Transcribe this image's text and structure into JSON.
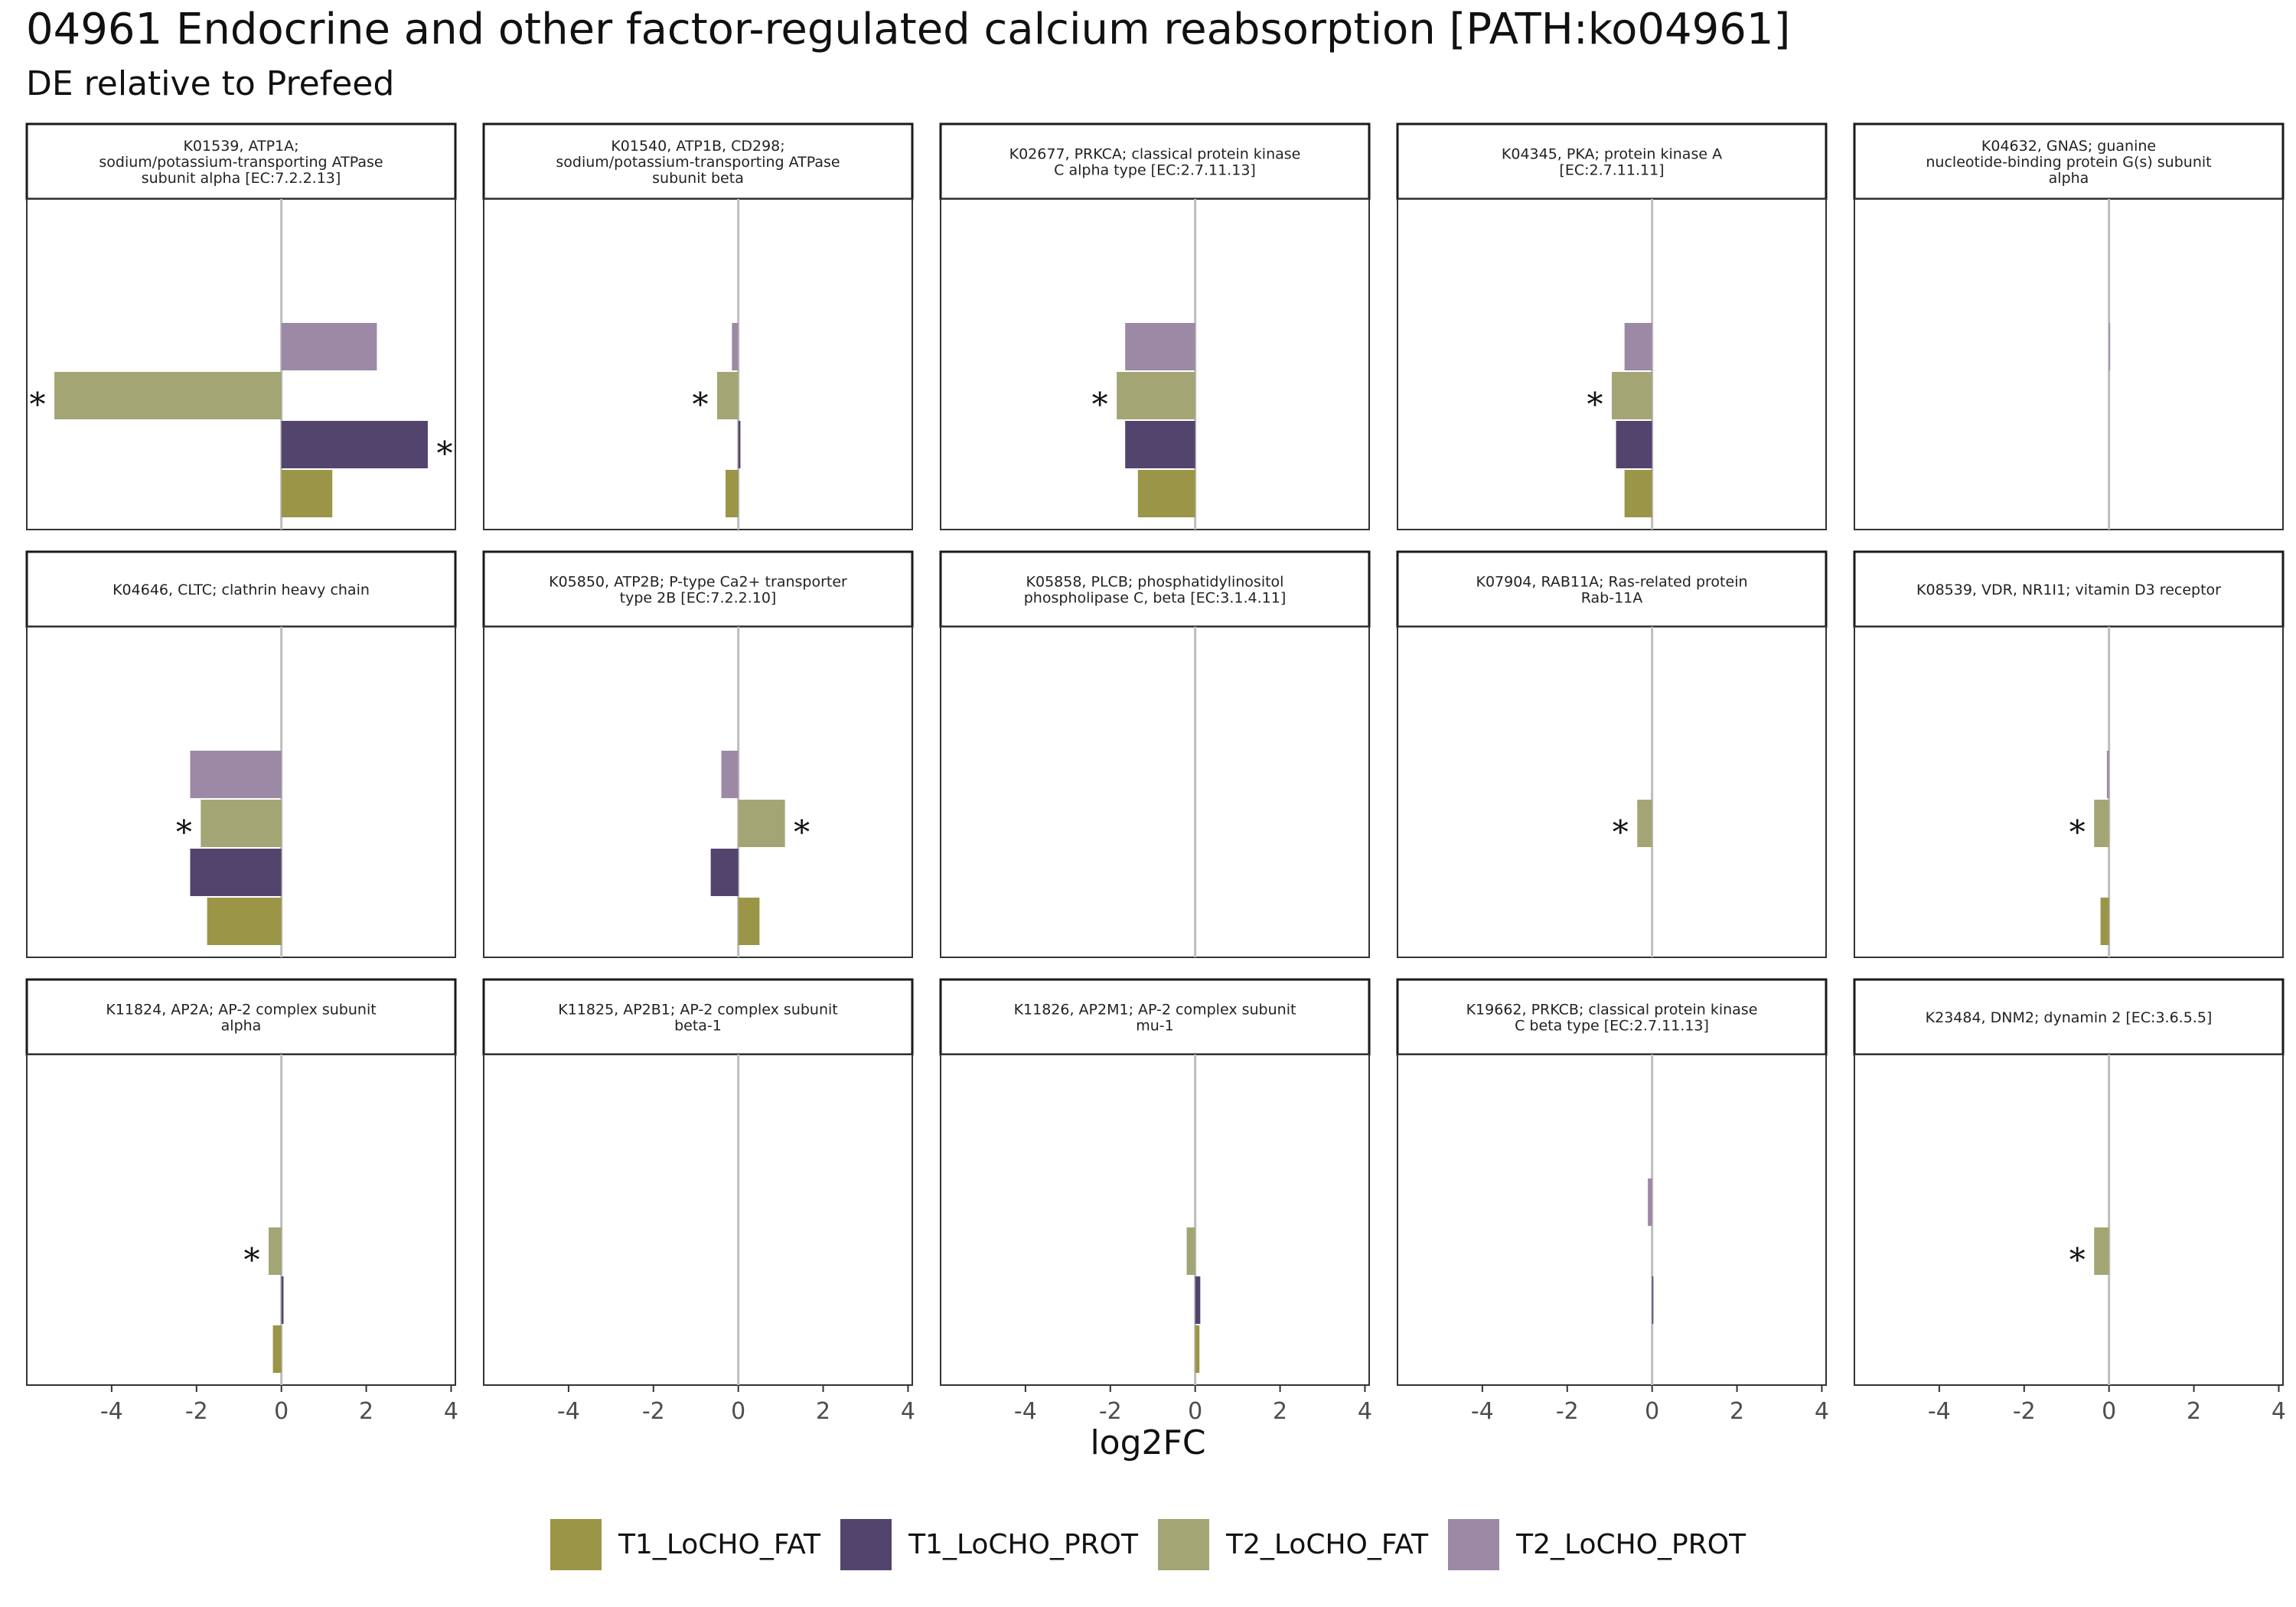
{
  "title": "04961 Endocrine and other factor-regulated calcium reabsorption [PATH:ko04961]",
  "subtitle": "DE relative to Prefeed",
  "chart_data": {
    "type": "bar",
    "orientation": "horizontal",
    "facet_layout": "3 rows x 5 columns",
    "xlabel": "log2FC",
    "ylabel": "",
    "xlim": [
      -6,
      4.1
    ],
    "xticks": [
      "-4",
      "-2",
      "0",
      "2",
      "4"
    ],
    "xtick_values": [
      -4,
      -2,
      0,
      2,
      4
    ],
    "grid": false,
    "legend_position": "bottom",
    "significance_marker": "*",
    "series": [
      {
        "name": "T1_LoCHO_FAT",
        "color": "#9b9547"
      },
      {
        "name": "T1_LoCHO_PROT",
        "color": "#53446d"
      },
      {
        "name": "T2_LoCHO_FAT",
        "color": "#a4a575"
      },
      {
        "name": "T2_LoCHO_PROT",
        "color": "#9c89a6"
      }
    ],
    "panels": [
      {
        "label": "K01539, ATP1A;\nsodium/potassium-transporting ATPase\nsubunit alpha [EC:7.2.2.13]",
        "values": {
          "T1_LoCHO_FAT": 1.2,
          "T1_LoCHO_PROT": 3.45,
          "T2_LoCHO_FAT": -5.35,
          "T2_LoCHO_PROT": 2.25
        },
        "significant": [
          "T1_LoCHO_PROT",
          "T2_LoCHO_FAT"
        ]
      },
      {
        "label": "K01540, ATP1B, CD298;\nsodium/potassium-transporting ATPase\nsubunit beta",
        "values": {
          "T1_LoCHO_FAT": -0.3,
          "T1_LoCHO_PROT": 0.05,
          "T2_LoCHO_FAT": -0.5,
          "T2_LoCHO_PROT": -0.15
        },
        "significant": [
          "T2_LoCHO_FAT"
        ]
      },
      {
        "label": "K02677, PRKCA; classical protein kinase\nC alpha type [EC:2.7.11.13]",
        "values": {
          "T1_LoCHO_FAT": -1.35,
          "T1_LoCHO_PROT": -1.65,
          "T2_LoCHO_FAT": -1.85,
          "T2_LoCHO_PROT": -1.65
        },
        "significant": [
          "T2_LoCHO_FAT"
        ]
      },
      {
        "label": "K04345, PKA; protein kinase A\n[EC:2.7.11.11]",
        "values": {
          "T1_LoCHO_FAT": -0.65,
          "T1_LoCHO_PROT": -0.85,
          "T2_LoCHO_FAT": -0.95,
          "T2_LoCHO_PROT": -0.65
        },
        "significant": [
          "T2_LoCHO_FAT"
        ]
      },
      {
        "label": "K04632, GNAS; guanine\nnucleotide-binding protein G(s) subunit\nalpha",
        "values": {
          "T1_LoCHO_FAT": 0,
          "T1_LoCHO_PROT": 0,
          "T2_LoCHO_FAT": 0,
          "T2_LoCHO_PROT": 0.02
        },
        "significant": []
      },
      {
        "label": "K04646, CLTC; clathrin heavy chain",
        "values": {
          "T1_LoCHO_FAT": -1.75,
          "T1_LoCHO_PROT": -2.15,
          "T2_LoCHO_FAT": -1.9,
          "T2_LoCHO_PROT": -2.15
        },
        "significant": [
          "T2_LoCHO_FAT"
        ]
      },
      {
        "label": "K05850, ATP2B; P-type Ca2+ transporter\ntype 2B [EC:7.2.2.10]",
        "values": {
          "T1_LoCHO_FAT": 0.5,
          "T1_LoCHO_PROT": -0.65,
          "T2_LoCHO_FAT": 1.1,
          "T2_LoCHO_PROT": -0.4
        },
        "significant": [
          "T2_LoCHO_FAT"
        ]
      },
      {
        "label": "K05858, PLCB; phosphatidylinositol\nphospholipase C, beta [EC:3.1.4.11]",
        "values": {
          "T1_LoCHO_FAT": 0,
          "T1_LoCHO_PROT": 0,
          "T2_LoCHO_FAT": 0,
          "T2_LoCHO_PROT": 0
        },
        "significant": []
      },
      {
        "label": "K07904, RAB11A; Ras-related protein\nRab-11A",
        "values": {
          "T1_LoCHO_FAT": 0,
          "T1_LoCHO_PROT": 0,
          "T2_LoCHO_FAT": -0.35,
          "T2_LoCHO_PROT": 0
        },
        "significant": [
          "T2_LoCHO_FAT"
        ]
      },
      {
        "label": "K08539, VDR, NR1I1; vitamin D3 receptor",
        "values": {
          "T1_LoCHO_FAT": -0.2,
          "T1_LoCHO_PROT": 0,
          "T2_LoCHO_FAT": -0.35,
          "T2_LoCHO_PROT": -0.05
        },
        "significant": [
          "T2_LoCHO_FAT"
        ]
      },
      {
        "label": "K11824, AP2A; AP-2 complex subunit\nalpha",
        "values": {
          "T1_LoCHO_FAT": -0.2,
          "T1_LoCHO_PROT": 0.05,
          "T2_LoCHO_FAT": -0.3,
          "T2_LoCHO_PROT": 0
        },
        "significant": [
          "T2_LoCHO_FAT"
        ]
      },
      {
        "label": "K11825, AP2B1; AP-2 complex subunit\nbeta-1",
        "values": {
          "T1_LoCHO_FAT": 0,
          "T1_LoCHO_PROT": 0,
          "T2_LoCHO_FAT": 0,
          "T2_LoCHO_PROT": 0
        },
        "significant": []
      },
      {
        "label": "K11826, AP2M1; AP-2 complex subunit\nmu-1",
        "values": {
          "T1_LoCHO_FAT": 0.1,
          "T1_LoCHO_PROT": 0.12,
          "T2_LoCHO_FAT": -0.2,
          "T2_LoCHO_PROT": 0
        },
        "significant": []
      },
      {
        "label": "K19662, PRKCB; classical protein kinase\nC beta type [EC:2.7.11.13]",
        "values": {
          "T1_LoCHO_FAT": 0,
          "T1_LoCHO_PROT": 0.03,
          "T2_LoCHO_FAT": 0,
          "T2_LoCHO_PROT": -0.1
        },
        "significant": []
      },
      {
        "label": "K23484, DNM2; dynamin 2 [EC:3.6.5.5]",
        "values": {
          "T1_LoCHO_FAT": 0,
          "T1_LoCHO_PROT": 0,
          "T2_LoCHO_FAT": -0.35,
          "T2_LoCHO_PROT": 0
        },
        "significant": [
          "T2_LoCHO_FAT"
        ]
      }
    ]
  }
}
